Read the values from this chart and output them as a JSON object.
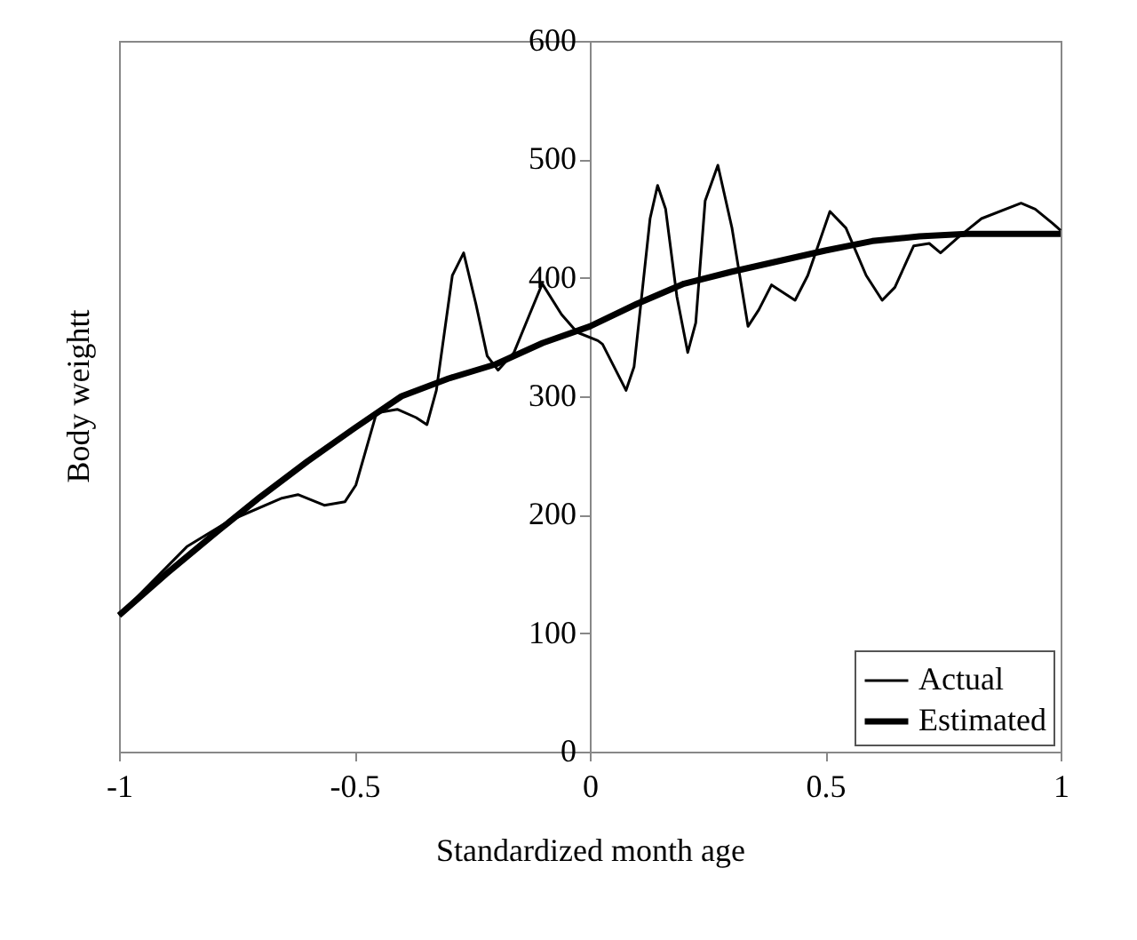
{
  "chart_data": {
    "type": "line",
    "xlabel": "Standardized month age",
    "ylabel": "Body weightt",
    "xlim": [
      -1,
      1
    ],
    "xticks": [
      -1,
      -0.5,
      0,
      0.5,
      1
    ],
    "ylim": [
      0,
      600
    ],
    "yticks": [
      0,
      100,
      200,
      300,
      400,
      500,
      600
    ],
    "grid": false,
    "legend": "bottom right",
    "marker": "none",
    "line_style": "solid",
    "series": [
      {
        "name": "Actual",
        "color": "#000000",
        "x": [
          -1,
          -0.856,
          -0.765,
          -0.654,
          -0.62,
          -0.564,
          -0.52,
          -0.497,
          -0.453,
          -0.409,
          -0.369,
          -0.346,
          -0.326,
          -0.292,
          -0.268,
          -0.242,
          -0.218,
          -0.195,
          -0.161,
          -0.128,
          -0.101,
          -0.06,
          -0.027,
          0.017,
          0.027,
          0.077,
          0.094,
          0.128,
          0.144,
          0.161,
          0.185,
          0.208,
          0.225,
          0.245,
          0.272,
          0.302,
          0.336,
          0.359,
          0.386,
          0.436,
          0.463,
          0.51,
          0.544,
          0.587,
          0.621,
          0.648,
          0.688,
          0.721,
          0.745,
          0.782,
          0.832,
          0.916,
          0.946,
          0.983,
          1
        ],
        "values": [
          115,
          173,
          195,
          214,
          217,
          208,
          211,
          225,
          286,
          289,
          282,
          276,
          305,
          402,
          421,
          378,
          334,
          322,
          337,
          369,
          395,
          369,
          354,
          347,
          344,
          305,
          325,
          450,
          478,
          458,
          384,
          337,
          362,
          465,
          495,
          442,
          359,
          373,
          394,
          381,
          402,
          456,
          442,
          402,
          381,
          392,
          427,
          429,
          421,
          434,
          450,
          463,
          458,
          446,
          440
        ]
      },
      {
        "name": "Estimated",
        "color": "#000000",
        "x": [
          -1,
          -0.9,
          -0.8,
          -0.7,
          -0.6,
          -0.5,
          -0.4,
          -0.3,
          -0.2,
          -0.1,
          0,
          0.1,
          0.2,
          0.3,
          0.4,
          0.5,
          0.6,
          0.7,
          0.8,
          0.9,
          1
        ],
        "values": [
          115,
          150,
          183,
          215,
          245,
          273,
          300,
          315,
          327,
          345,
          359,
          378,
          395,
          405,
          414,
          423,
          431,
          435,
          437,
          437,
          437
        ]
      }
    ]
  }
}
